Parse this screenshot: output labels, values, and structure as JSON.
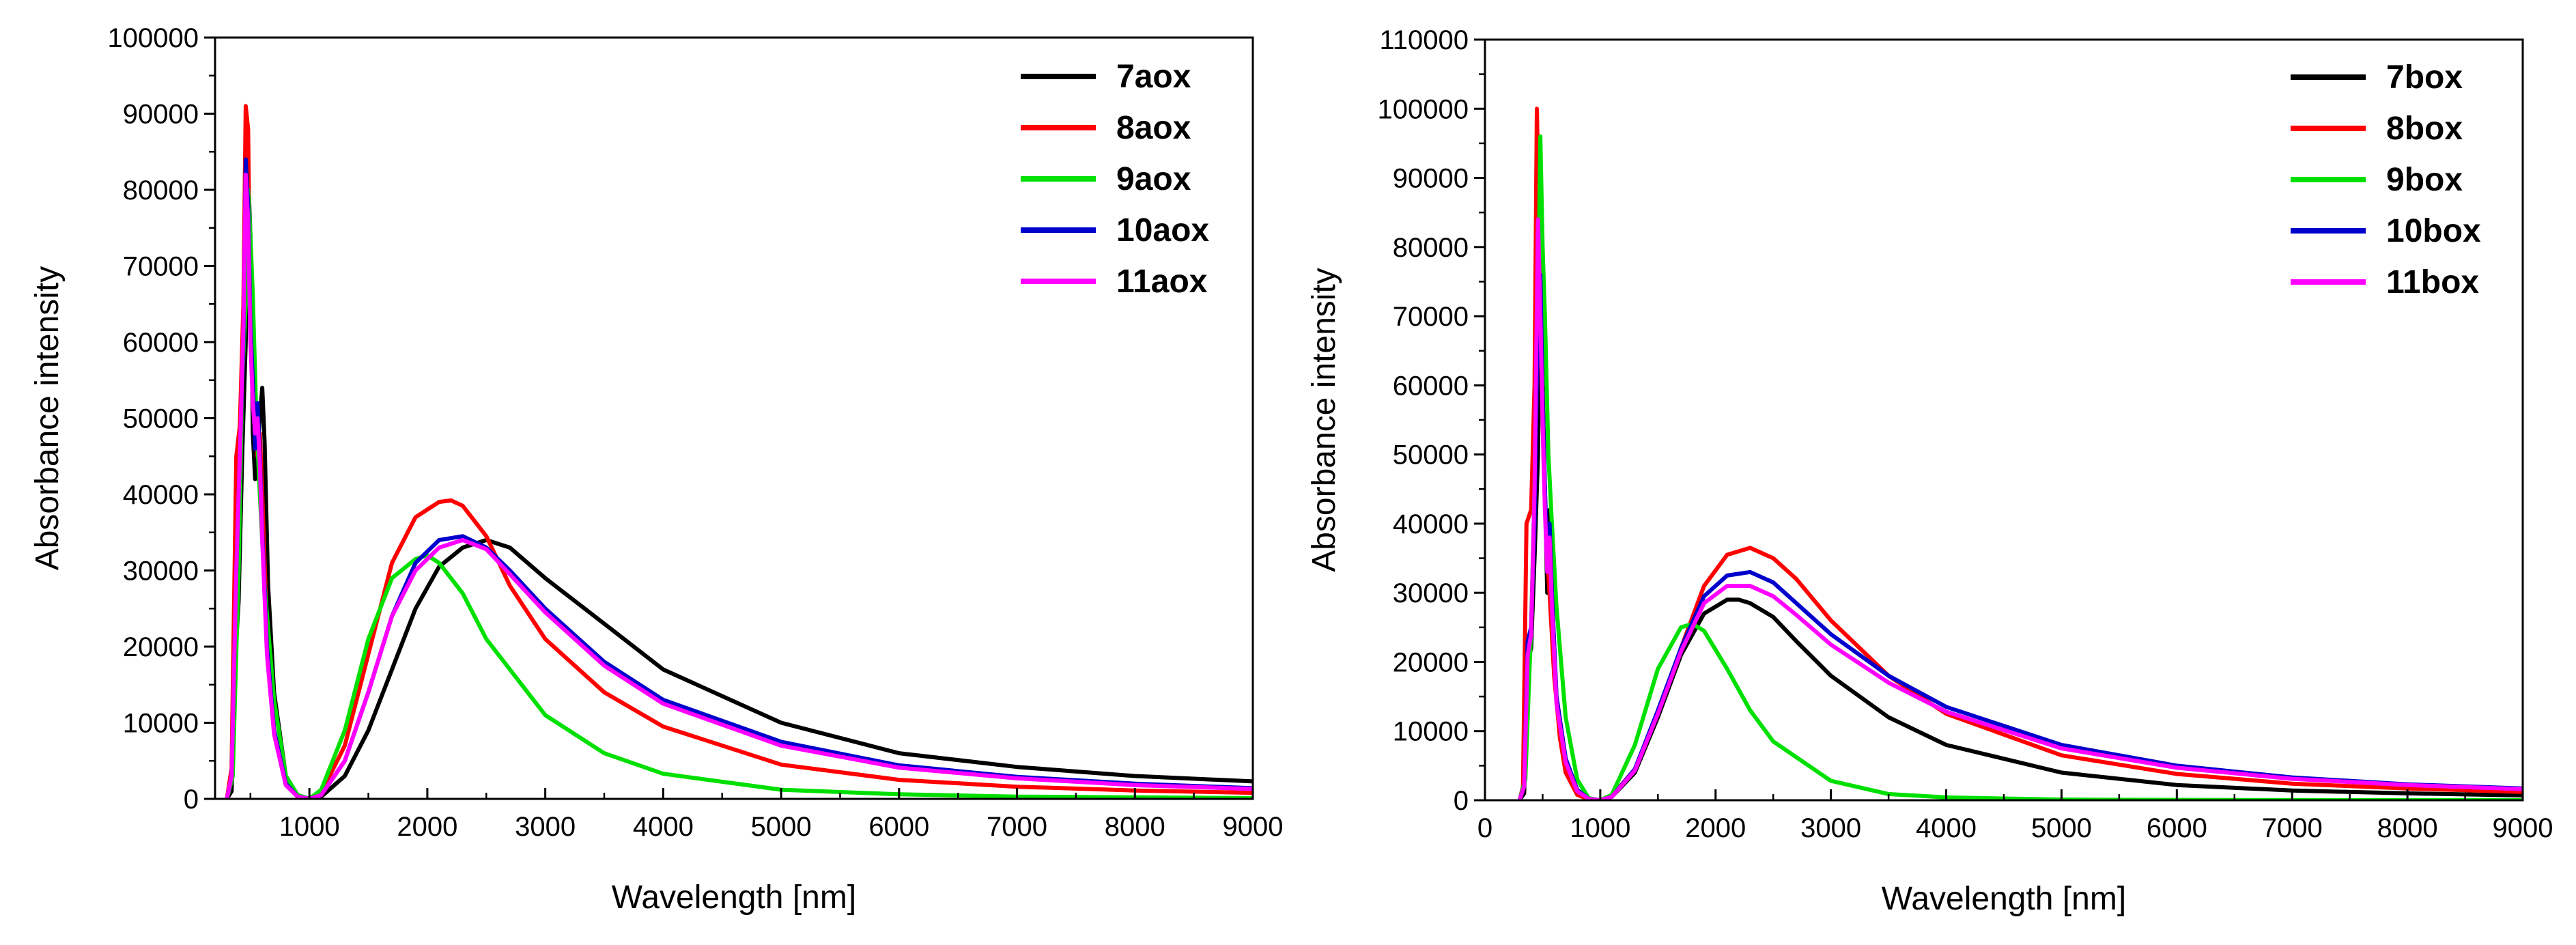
{
  "chart_data": [
    {
      "type": "line",
      "xlabel": "Wavelength [nm]",
      "ylabel": "Absorbance intensity",
      "xlim": [
        200,
        9000
      ],
      "ylim": [
        0,
        100000
      ],
      "xticks": [
        1000,
        2000,
        3000,
        4000,
        5000,
        6000,
        7000,
        8000,
        9000
      ],
      "yticks": [
        0,
        10000,
        20000,
        30000,
        40000,
        50000,
        60000,
        70000,
        80000,
        90000,
        100000
      ],
      "legend_position": "top-right",
      "series": [
        {
          "name": "7aox",
          "color": "#000000",
          "x": [
            300,
            340,
            370,
            400,
            430,
            460,
            480,
            500,
            520,
            540,
            560,
            580,
            600,
            620,
            650,
            700,
            800,
            900,
            1000,
            1100,
            1300,
            1500,
            1700,
            1900,
            2100,
            2300,
            2500,
            2700,
            3000,
            3500,
            4000,
            5000,
            6000,
            7000,
            8000,
            9000
          ],
          "y": [
            0,
            1000,
            18000,
            26000,
            45000,
            60000,
            82000,
            74000,
            48000,
            42000,
            46000,
            50000,
            54000,
            47000,
            28000,
            14000,
            3000,
            500,
            0,
            300,
            3000,
            9000,
            17000,
            25000,
            30500,
            33000,
            34000,
            33000,
            29000,
            23000,
            17000,
            10000,
            6000,
            4200,
            3000,
            2300
          ]
        },
        {
          "name": "8aox",
          "color": "#ff0000",
          "x": [
            300,
            340,
            380,
            410,
            440,
            460,
            480,
            500,
            520,
            540,
            560,
            580,
            600,
            640,
            700,
            800,
            900,
            1000,
            1100,
            1300,
            1500,
            1700,
            1900,
            2100,
            2200,
            2300,
            2500,
            2700,
            3000,
            3500,
            4000,
            5000,
            6000,
            7000,
            8000,
            9000
          ],
          "y": [
            0,
            4000,
            45000,
            49000,
            65000,
            91000,
            88000,
            62000,
            55000,
            50000,
            45000,
            48000,
            40000,
            22000,
            9000,
            2000,
            300,
            0,
            800,
            7000,
            19000,
            31000,
            37000,
            39000,
            39200,
            38500,
            34500,
            28000,
            21000,
            14000,
            9500,
            4500,
            2500,
            1600,
            1100,
            800
          ]
        },
        {
          "name": "9aox",
          "color": "#00e000",
          "x": [
            300,
            350,
            400,
            430,
            460,
            480,
            500,
            520,
            550,
            580,
            620,
            700,
            800,
            900,
            1000,
            1100,
            1300,
            1500,
            1700,
            1900,
            2000,
            2100,
            2300,
            2500,
            3000,
            3500,
            4000,
            5000,
            6000,
            7000,
            8000,
            9000
          ],
          "y": [
            0,
            3000,
            30000,
            55000,
            65000,
            80000,
            74000,
            66000,
            50000,
            40000,
            28000,
            13000,
            3000,
            500,
            0,
            1200,
            9000,
            21000,
            29000,
            31500,
            32000,
            31000,
            27000,
            21000,
            11000,
            6000,
            3300,
            1200,
            600,
            300,
            200,
            100
          ]
        },
        {
          "name": "10aox",
          "color": "#0000cc",
          "x": [
            300,
            340,
            380,
            410,
            440,
            460,
            480,
            500,
            520,
            540,
            560,
            580,
            600,
            640,
            700,
            800,
            900,
            1000,
            1100,
            1300,
            1500,
            1700,
            1900,
            2100,
            2300,
            2500,
            2700,
            3000,
            3500,
            4000,
            5000,
            6000,
            7000,
            8000,
            9000
          ],
          "y": [
            0,
            3000,
            30000,
            45000,
            60000,
            84000,
            78000,
            62000,
            55000,
            46000,
            52000,
            45000,
            35000,
            20000,
            9000,
            2000,
            300,
            0,
            500,
            5000,
            14000,
            24000,
            31000,
            34000,
            34500,
            33000,
            30000,
            25000,
            18000,
            13000,
            7500,
            4400,
            2900,
            2000,
            1400
          ]
        },
        {
          "name": "11aox",
          "color": "#ff00ff",
          "x": [
            300,
            340,
            380,
            410,
            440,
            460,
            480,
            500,
            520,
            540,
            560,
            580,
            600,
            640,
            700,
            800,
            900,
            1000,
            1100,
            1300,
            1500,
            1700,
            1900,
            2100,
            2300,
            2500,
            2700,
            3000,
            3500,
            4000,
            5000,
            6000,
            7000,
            8000,
            9000
          ],
          "y": [
            0,
            3000,
            30000,
            45000,
            62000,
            82000,
            76000,
            60000,
            52000,
            48000,
            50000,
            44000,
            34000,
            19000,
            8500,
            1800,
            300,
            0,
            500,
            5000,
            14000,
            24000,
            30000,
            33000,
            34000,
            32800,
            29500,
            24500,
            17500,
            12500,
            7000,
            4100,
            2700,
            1800,
            1300
          ]
        }
      ]
    },
    {
      "type": "line",
      "xlabel": "Wavelength [nm]",
      "ylabel": "Absorbance intensity",
      "xlim": [
        0,
        9000
      ],
      "ylim": [
        0,
        110000
      ],
      "xticks": [
        0,
        1000,
        2000,
        3000,
        4000,
        5000,
        6000,
        7000,
        8000,
        9000
      ],
      "yticks": [
        0,
        10000,
        20000,
        30000,
        40000,
        50000,
        60000,
        70000,
        80000,
        90000,
        100000,
        110000
      ],
      "legend_position": "top-right",
      "series": [
        {
          "name": "7box",
          "color": "#000000",
          "x": [
            300,
            340,
            370,
            400,
            430,
            460,
            480,
            500,
            520,
            540,
            560,
            580,
            620,
            700,
            800,
            900,
            1000,
            1100,
            1300,
            1500,
            1700,
            1900,
            2100,
            2200,
            2300,
            2500,
            2700,
            3000,
            3500,
            4000,
            5000,
            6000,
            7000,
            8000,
            9000
          ],
          "y": [
            0,
            1000,
            20000,
            22000,
            35000,
            50000,
            78000,
            60000,
            45000,
            30000,
            42000,
            30000,
            15000,
            6000,
            1500,
            200,
            0,
            500,
            4000,
            12000,
            21000,
            27000,
            29000,
            29000,
            28500,
            26500,
            23000,
            18000,
            12000,
            8000,
            4000,
            2200,
            1400,
            1000,
            700
          ]
        },
        {
          "name": "8box",
          "color": "#ff0000",
          "x": [
            300,
            330,
            360,
            400,
            430,
            450,
            470,
            490,
            510,
            530,
            560,
            600,
            650,
            700,
            800,
            900,
            1000,
            1100,
            1300,
            1500,
            1700,
            1900,
            2100,
            2300,
            2500,
            2700,
            3000,
            3500,
            4000,
            5000,
            6000,
            7000,
            8000,
            9000
          ],
          "y": [
            0,
            2000,
            40000,
            42000,
            60000,
            100000,
            82000,
            62000,
            48000,
            38000,
            30000,
            18000,
            9000,
            4000,
            800,
            100,
            0,
            600,
            4500,
            12500,
            22000,
            31000,
            35500,
            36500,
            35000,
            32000,
            26000,
            18000,
            12500,
            6500,
            3800,
            2400,
            1700,
            1200
          ]
        },
        {
          "name": "9box",
          "color": "#00e000",
          "x": [
            300,
            350,
            400,
            430,
            460,
            480,
            500,
            520,
            550,
            580,
            620,
            700,
            800,
            900,
            1000,
            1100,
            1300,
            1500,
            1700,
            1800,
            1900,
            2100,
            2300,
            2500,
            3000,
            3500,
            4000,
            5000,
            6000,
            7000,
            8000,
            9000
          ],
          "y": [
            0,
            3000,
            25000,
            45000,
            70000,
            96000,
            80000,
            70000,
            50000,
            40000,
            28000,
            12000,
            3000,
            300,
            0,
            800,
            8000,
            19000,
            25000,
            25500,
            24500,
            19000,
            13000,
            8500,
            2800,
            900,
            400,
            100,
            50,
            20,
            10,
            0
          ]
        },
        {
          "name": "10box",
          "color": "#0000cc",
          "x": [
            300,
            340,
            370,
            400,
            430,
            460,
            480,
            500,
            520,
            540,
            560,
            580,
            620,
            700,
            800,
            900,
            1000,
            1100,
            1300,
            1500,
            1700,
            1900,
            2100,
            2300,
            2500,
            2700,
            3000,
            3500,
            4000,
            5000,
            6000,
            7000,
            8000,
            9000
          ],
          "y": [
            0,
            2000,
            23000,
            25000,
            40000,
            72000,
            76000,
            58000,
            45000,
            35000,
            40000,
            30000,
            15000,
            6000,
            1500,
            200,
            0,
            500,
            4500,
            13000,
            22000,
            29500,
            32500,
            33000,
            31500,
            28500,
            24000,
            18000,
            13500,
            8000,
            5000,
            3300,
            2300,
            1700
          ]
        },
        {
          "name": "11box",
          "color": "#ff00ff",
          "x": [
            300,
            340,
            370,
            400,
            430,
            460,
            480,
            500,
            520,
            540,
            560,
            580,
            620,
            700,
            800,
            900,
            1000,
            1100,
            1300,
            1500,
            1700,
            1900,
            2100,
            2300,
            2500,
            2700,
            3000,
            3500,
            4000,
            5000,
            6000,
            7000,
            8000,
            9000
          ],
          "y": [
            0,
            2000,
            21000,
            24000,
            45000,
            84000,
            70000,
            55000,
            42000,
            33000,
            38000,
            28000,
            14000,
            5500,
            1300,
            200,
            0,
            500,
            4300,
            12500,
            21500,
            28500,
            31000,
            31000,
            29500,
            26800,
            22500,
            17000,
            12800,
            7500,
            4700,
            3100,
            2200,
            1600
          ]
        }
      ]
    }
  ]
}
